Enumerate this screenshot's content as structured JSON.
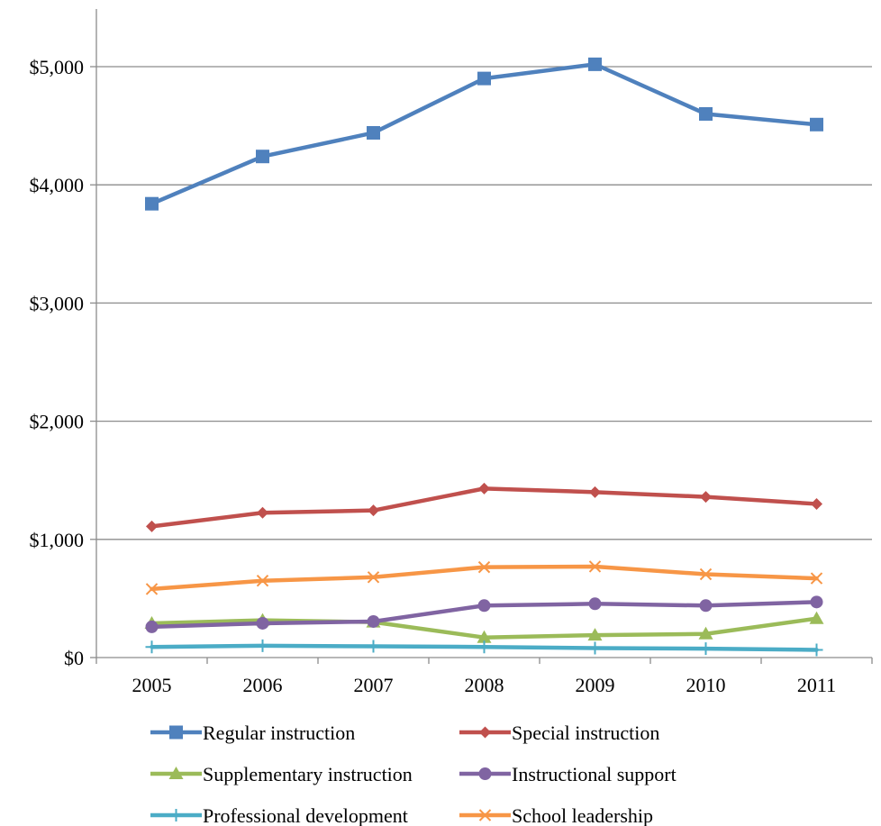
{
  "chart_data": {
    "type": "line",
    "title": "",
    "xlabel": "",
    "ylabel": "",
    "categories": [
      "2005",
      "2006",
      "2007",
      "2008",
      "2009",
      "2010",
      "2011"
    ],
    "ylim": [
      0,
      5500
    ],
    "yticks": [
      0,
      1000,
      2000,
      3000,
      4000,
      5000
    ],
    "ytick_labels": [
      "$0",
      "$1,000",
      "$2,000",
      "$3,000",
      "$4,000",
      "$5,000"
    ],
    "grid": "horizontal",
    "legend": "bottom",
    "series": [
      {
        "name": "Regular instruction",
        "color": "#4F81BD",
        "marker": "square",
        "values": [
          3840,
          4240,
          4440,
          4900,
          5020,
          4600,
          4510
        ]
      },
      {
        "name": "Special instruction",
        "color": "#C0504D",
        "marker": "diamond",
        "values": [
          1110,
          1225,
          1245,
          1430,
          1400,
          1360,
          1300
        ]
      },
      {
        "name": "Supplementary instruction",
        "color": "#9BBB59",
        "marker": "triangle",
        "values": [
          290,
          315,
          300,
          170,
          190,
          200,
          330
        ]
      },
      {
        "name": "Instructional support",
        "color": "#8064A2",
        "marker": "circle",
        "values": [
          260,
          290,
          305,
          440,
          455,
          440,
          470
        ]
      },
      {
        "name": "Professional development",
        "color": "#4BACC6",
        "marker": "plus",
        "values": [
          90,
          100,
          95,
          90,
          80,
          75,
          65
        ]
      },
      {
        "name": "School leadership",
        "color": "#F79646",
        "marker": "x",
        "values": [
          580,
          650,
          680,
          765,
          770,
          705,
          670
        ]
      }
    ]
  }
}
